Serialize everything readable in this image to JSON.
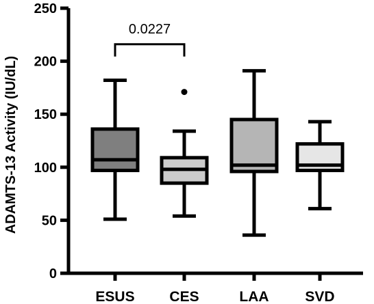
{
  "chart_data": {
    "type": "box",
    "ylabel": "ADAMTS-13 Activity (IU/dL)",
    "xlabel": "",
    "ylim": [
      0,
      250
    ],
    "yticks": [
      0,
      50,
      100,
      150,
      200,
      250
    ],
    "grid": false,
    "categories": [
      "ESUS",
      "CES",
      "LAA",
      "SVD"
    ],
    "boxes": [
      {
        "category": "ESUS",
        "min": 51,
        "q1": 97,
        "median": 107,
        "q3": 136,
        "max": 182,
        "outliers": [],
        "fill": "#7f7f7f"
      },
      {
        "category": "CES",
        "min": 54,
        "q1": 85,
        "median": 98,
        "q3": 109,
        "max": 134,
        "outliers": [
          171
        ],
        "fill": "#cccccc"
      },
      {
        "category": "LAA",
        "min": 36,
        "q1": 96,
        "median": 102,
        "q3": 145,
        "max": 191,
        "outliers": [],
        "fill": "#b5b5b5"
      },
      {
        "category": "SVD",
        "min": 61,
        "q1": 97,
        "median": 102,
        "q3": 122,
        "max": 143,
        "outliers": [],
        "fill": "#e6e6e6"
      }
    ],
    "annotations": [
      {
        "type": "significance-bracket",
        "from": "ESUS",
        "to": "CES",
        "y": 216,
        "label": "0.0227"
      }
    ]
  }
}
